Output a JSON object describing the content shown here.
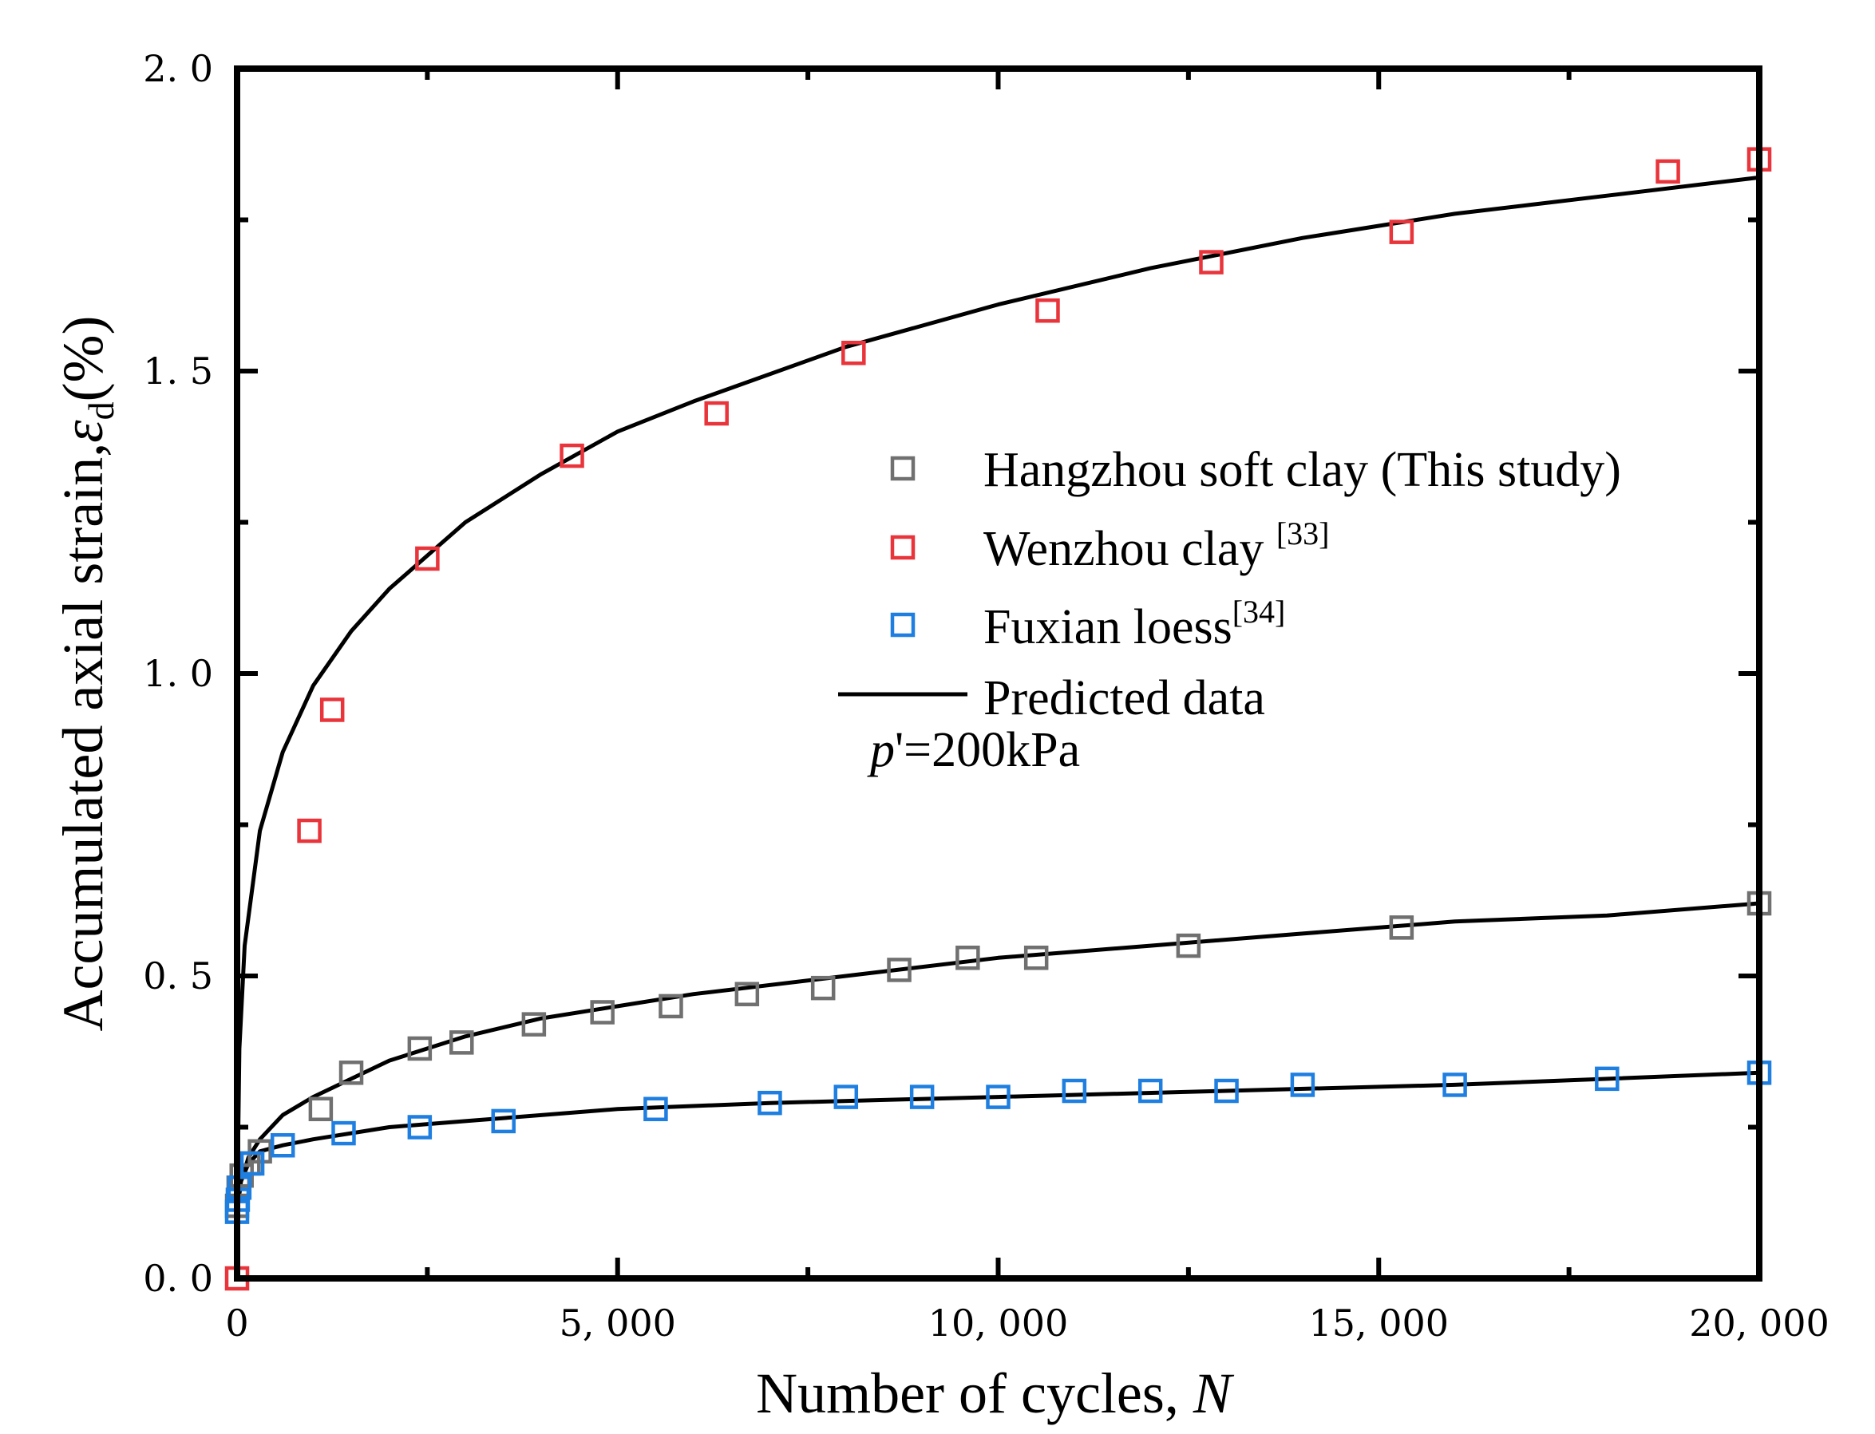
{
  "chart_data": {
    "type": "scatter",
    "xlabel": "Number of cycles, ",
    "xlabel_var": "N",
    "ylabel": "Accumulated axial strain,",
    "ylabel_sym": "ε",
    "ylabel_sub": "d",
    "ylabel_unit": "(%)",
    "xlim": [
      0,
      20000
    ],
    "ylim": [
      0,
      2.0
    ],
    "xticks": [
      0,
      5000,
      10000,
      15000,
      20000
    ],
    "xtick_labels": [
      "0",
      "5, 000",
      "10, 000",
      "15, 000",
      "20, 000"
    ],
    "yticks": [
      0,
      0.5,
      1.0,
      1.5,
      2.0
    ],
    "ytick_labels": [
      "0. 0",
      "0. 5",
      "1. 0",
      "1. 5",
      "2. 0"
    ],
    "grid": false,
    "legend_position": "center-right",
    "annotation": {
      "var": "p",
      "rest": "'=200kPa"
    },
    "series": [
      {
        "name": "Hangzhou soft clay (This study)",
        "sup": "",
        "color": "#707070",
        "marker": "open-square",
        "x": [
          0,
          20,
          60,
          150,
          300,
          1100,
          1500,
          2400,
          2950,
          3900,
          4800,
          5700,
          6700,
          7700,
          8700,
          9600,
          10500,
          12500,
          15300,
          20000
        ],
        "y": [
          0.12,
          0.15,
          0.17,
          0.19,
          0.21,
          0.28,
          0.34,
          0.38,
          0.39,
          0.42,
          0.44,
          0.45,
          0.47,
          0.48,
          0.51,
          0.53,
          0.53,
          0.55,
          0.58,
          0.62
        ]
      },
      {
        "name": "Wenzhou clay ",
        "sup": "[33]",
        "color": "#e8343a",
        "marker": "open-square",
        "x": [
          0,
          950,
          1250,
          2500,
          4400,
          6300,
          8100,
          10650,
          12800,
          15300,
          18800,
          20000
        ],
        "y": [
          0.0,
          0.74,
          0.94,
          1.19,
          1.36,
          1.43,
          1.53,
          1.6,
          1.68,
          1.73,
          1.83,
          1.85
        ]
      },
      {
        "name": "Fuxian loess",
        "sup": "[34]",
        "color": "#1f7fe0",
        "marker": "open-square",
        "x": [
          0,
          10,
          30,
          200,
          600,
          1400,
          2400,
          3500,
          5500,
          7000,
          8000,
          9000,
          10000,
          11000,
          12000,
          13000,
          14000,
          16000,
          18000,
          20000
        ],
        "y": [
          0.11,
          0.13,
          0.15,
          0.19,
          0.22,
          0.24,
          0.25,
          0.26,
          0.28,
          0.29,
          0.3,
          0.3,
          0.3,
          0.31,
          0.31,
          0.31,
          0.32,
          0.32,
          0.33,
          0.34
        ]
      },
      {
        "name": "Predicted data",
        "sup": "",
        "color": "#000000",
        "marker": "line",
        "curves": [
          {
            "x": [
              1,
              30,
              100,
              300,
              600,
              1000,
              1500,
              2000,
              3000,
              4000,
              5000,
              6000,
              8000,
              10000,
              12000,
              14000,
              16000,
              18000,
              20000
            ],
            "y": [
              0.1,
              0.38,
              0.55,
              0.74,
              0.87,
              0.98,
              1.07,
              1.14,
              1.25,
              1.33,
              1.4,
              1.45,
              1.54,
              1.61,
              1.67,
              1.72,
              1.76,
              1.79,
              1.82
            ]
          },
          {
            "x": [
              1,
              50,
              150,
              300,
              600,
              1000,
              1500,
              2000,
              3000,
              4000,
              5000,
              6000,
              8000,
              10000,
              12000,
              14000,
              16000,
              18000,
              20000
            ],
            "y": [
              0.11,
              0.16,
              0.2,
              0.23,
              0.27,
              0.3,
              0.33,
              0.36,
              0.4,
              0.43,
              0.45,
              0.47,
              0.5,
              0.53,
              0.55,
              0.57,
              0.59,
              0.6,
              0.62
            ]
          },
          {
            "x": [
              1,
              50,
              150,
              300,
              600,
              1000,
              2000,
              3000,
              5000,
              7000,
              10000,
              13000,
              16000,
              20000
            ],
            "y": [
              0.11,
              0.16,
              0.19,
              0.21,
              0.22,
              0.23,
              0.25,
              0.26,
              0.28,
              0.29,
              0.3,
              0.31,
              0.32,
              0.34
            ]
          }
        ]
      }
    ]
  }
}
